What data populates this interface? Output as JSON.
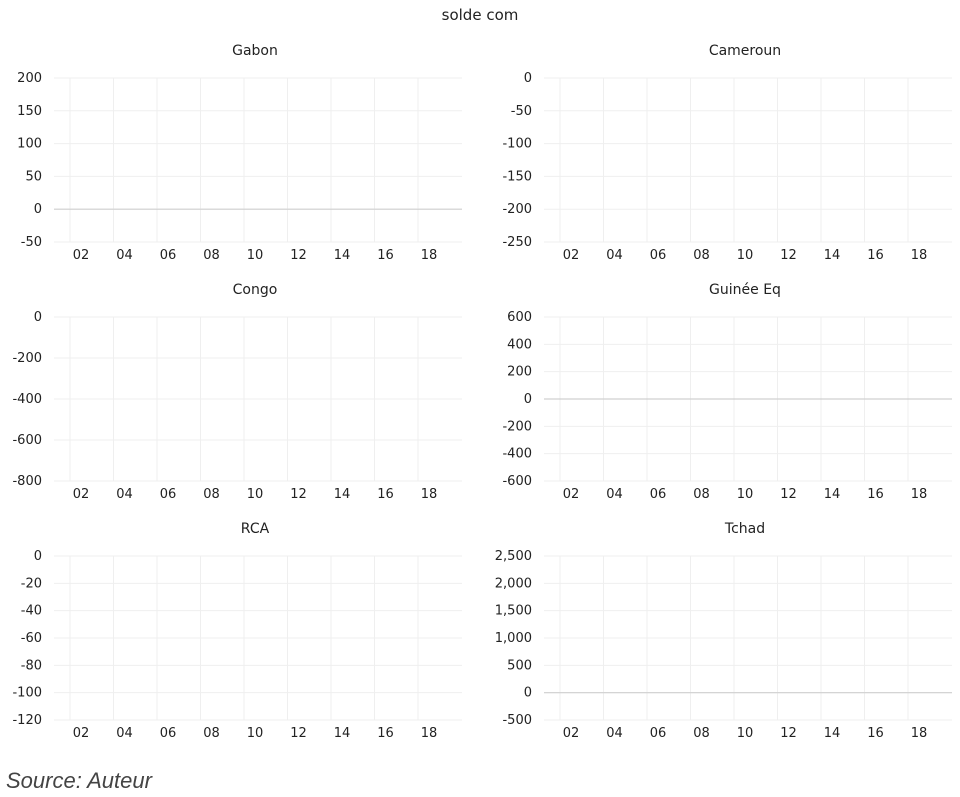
{
  "figure_title": "solde com",
  "source": "Source: Auteur",
  "chart_data": [
    {
      "type": "line",
      "title": "Gabon",
      "categories": [
        "02",
        "04",
        "06",
        "08",
        "10",
        "12",
        "14",
        "16",
        "18"
      ],
      "yticks": [
        "200",
        "150",
        "100",
        "50",
        "0",
        "-50"
      ],
      "ylim": [
        -50,
        200
      ],
      "zero_line": true,
      "grid": true,
      "series": []
    },
    {
      "type": "line",
      "title": "Cameroun",
      "categories": [
        "02",
        "04",
        "06",
        "08",
        "10",
        "12",
        "14",
        "16",
        "18"
      ],
      "yticks": [
        "0",
        "-50",
        "-100",
        "-150",
        "-200",
        "-250"
      ],
      "ylim": [
        -250,
        0
      ],
      "zero_line": false,
      "grid": true,
      "series": []
    },
    {
      "type": "line",
      "title": "Congo",
      "categories": [
        "02",
        "04",
        "06",
        "08",
        "10",
        "12",
        "14",
        "16",
        "18"
      ],
      "yticks": [
        "0",
        "-200",
        "-400",
        "-600",
        "-800"
      ],
      "ylim": [
        -800,
        0
      ],
      "zero_line": false,
      "grid": true,
      "series": []
    },
    {
      "type": "line",
      "title": "Guinée Eq",
      "categories": [
        "02",
        "04",
        "06",
        "08",
        "10",
        "12",
        "14",
        "16",
        "18"
      ],
      "yticks": [
        "600",
        "400",
        "200",
        "0",
        "-200",
        "-400",
        "-600"
      ],
      "ylim": [
        -600,
        600
      ],
      "zero_line": true,
      "grid": true,
      "series": []
    },
    {
      "type": "line",
      "title": "RCA",
      "categories": [
        "02",
        "04",
        "06",
        "08",
        "10",
        "12",
        "14",
        "16",
        "18"
      ],
      "yticks": [
        "0",
        "-20",
        "-40",
        "-60",
        "-80",
        "-100",
        "-120"
      ],
      "ylim": [
        -120,
        0
      ],
      "zero_line": false,
      "grid": true,
      "series": []
    },
    {
      "type": "line",
      "title": "Tchad",
      "categories": [
        "02",
        "04",
        "06",
        "08",
        "10",
        "12",
        "14",
        "16",
        "18"
      ],
      "yticks": [
        "2,500",
        "2,000",
        "1,500",
        "1,000",
        "500",
        "0",
        "-500"
      ],
      "ylim": [
        -500,
        2500
      ],
      "zero_line": true,
      "grid": true,
      "series": []
    }
  ]
}
